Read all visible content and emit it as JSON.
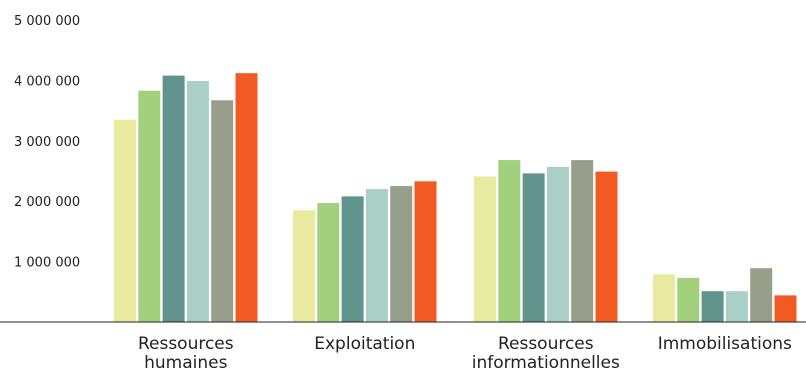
{
  "chart_data": {
    "type": "bar",
    "title": "",
    "xlabel": "",
    "ylabel": "",
    "ylim": [
      0,
      5000000
    ],
    "yticks": [
      {
        "value": 1000000,
        "label": "1 000 000"
      },
      {
        "value": 2000000,
        "label": "2 000 000"
      },
      {
        "value": 3000000,
        "label": "3 000 000"
      },
      {
        "value": 4000000,
        "label": "4 000 000"
      },
      {
        "value": 5000000,
        "label": "5 000 000"
      }
    ],
    "categories": [
      [
        "Ressources",
        "humaines"
      ],
      [
        "Exploitation"
      ],
      [
        "Ressources",
        "informationnelles"
      ],
      [
        "Immobilisations"
      ]
    ],
    "grid": false,
    "legend": "none",
    "series": [
      {
        "color": "#e8ea9f",
        "values": [
          3350000,
          1850000,
          2410000,
          790000
        ]
      },
      {
        "color": "#a3d07c",
        "values": [
          3830000,
          1970000,
          2680000,
          730000
        ]
      },
      {
        "color": "#60938b",
        "values": [
          4080000,
          2080000,
          2460000,
          510000
        ]
      },
      {
        "color": "#a9cfc6",
        "values": [
          3990000,
          2200000,
          2570000,
          510000
        ]
      },
      {
        "color": "#979e89",
        "values": [
          3670000,
          2250000,
          2680000,
          890000
        ]
      },
      {
        "color": "#f15a22",
        "values": [
          4120000,
          2330000,
          2490000,
          440000
        ]
      }
    ]
  }
}
